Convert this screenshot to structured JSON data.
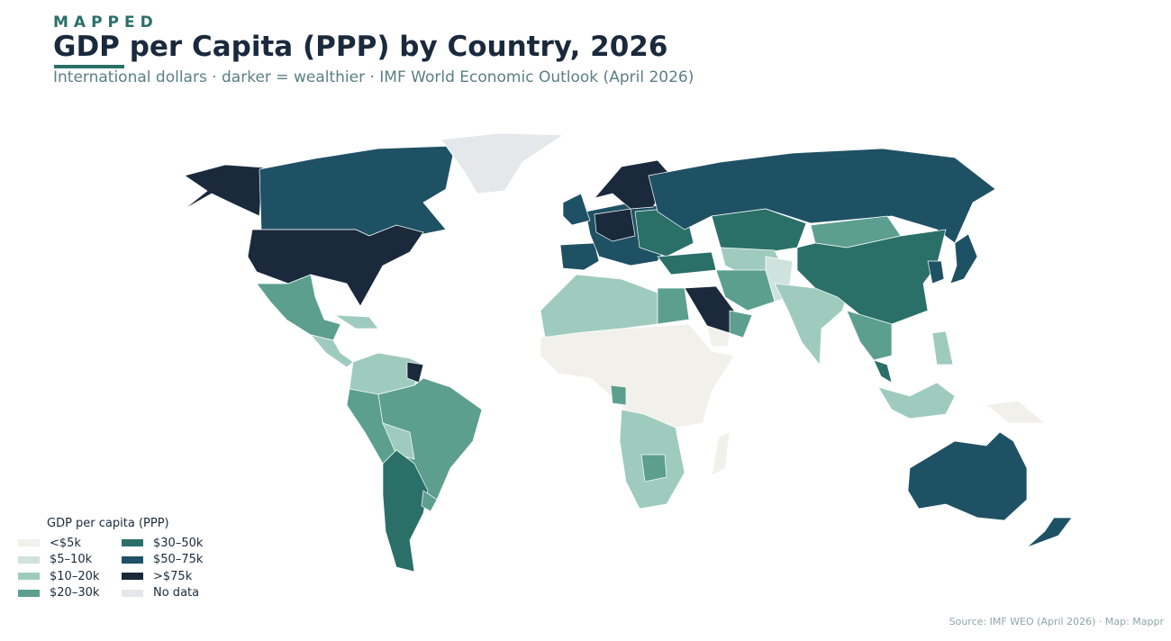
{
  "header": {
    "brand": "MAPPED",
    "title": "GDP per Capita (PPP) by Country, 2026",
    "subtitle": "International dollars · darker = wealthier · IMF World Economic Outlook (April 2026)"
  },
  "legend": {
    "title": "GDP per capita (PPP)",
    "items": [
      {
        "label": "<$5k",
        "color": "#f1f0ea"
      },
      {
        "label": "$5–10k",
        "color": "#cfe3de"
      },
      {
        "label": "$10–20k",
        "color": "#9ecbbd"
      },
      {
        "label": "$20–30k",
        "color": "#5c9f8f"
      },
      {
        "label": "$30–50k",
        "color": "#2a7068"
      },
      {
        "label": "$50–75k",
        "color": "#1f5165"
      },
      {
        "label": ">$75k",
        "color": "#1a2a3c"
      },
      {
        "label": "No data",
        "color": "#e4e8ea"
      }
    ]
  },
  "source": "Source: IMF WEO (April 2026) · Map: Mappr"
}
